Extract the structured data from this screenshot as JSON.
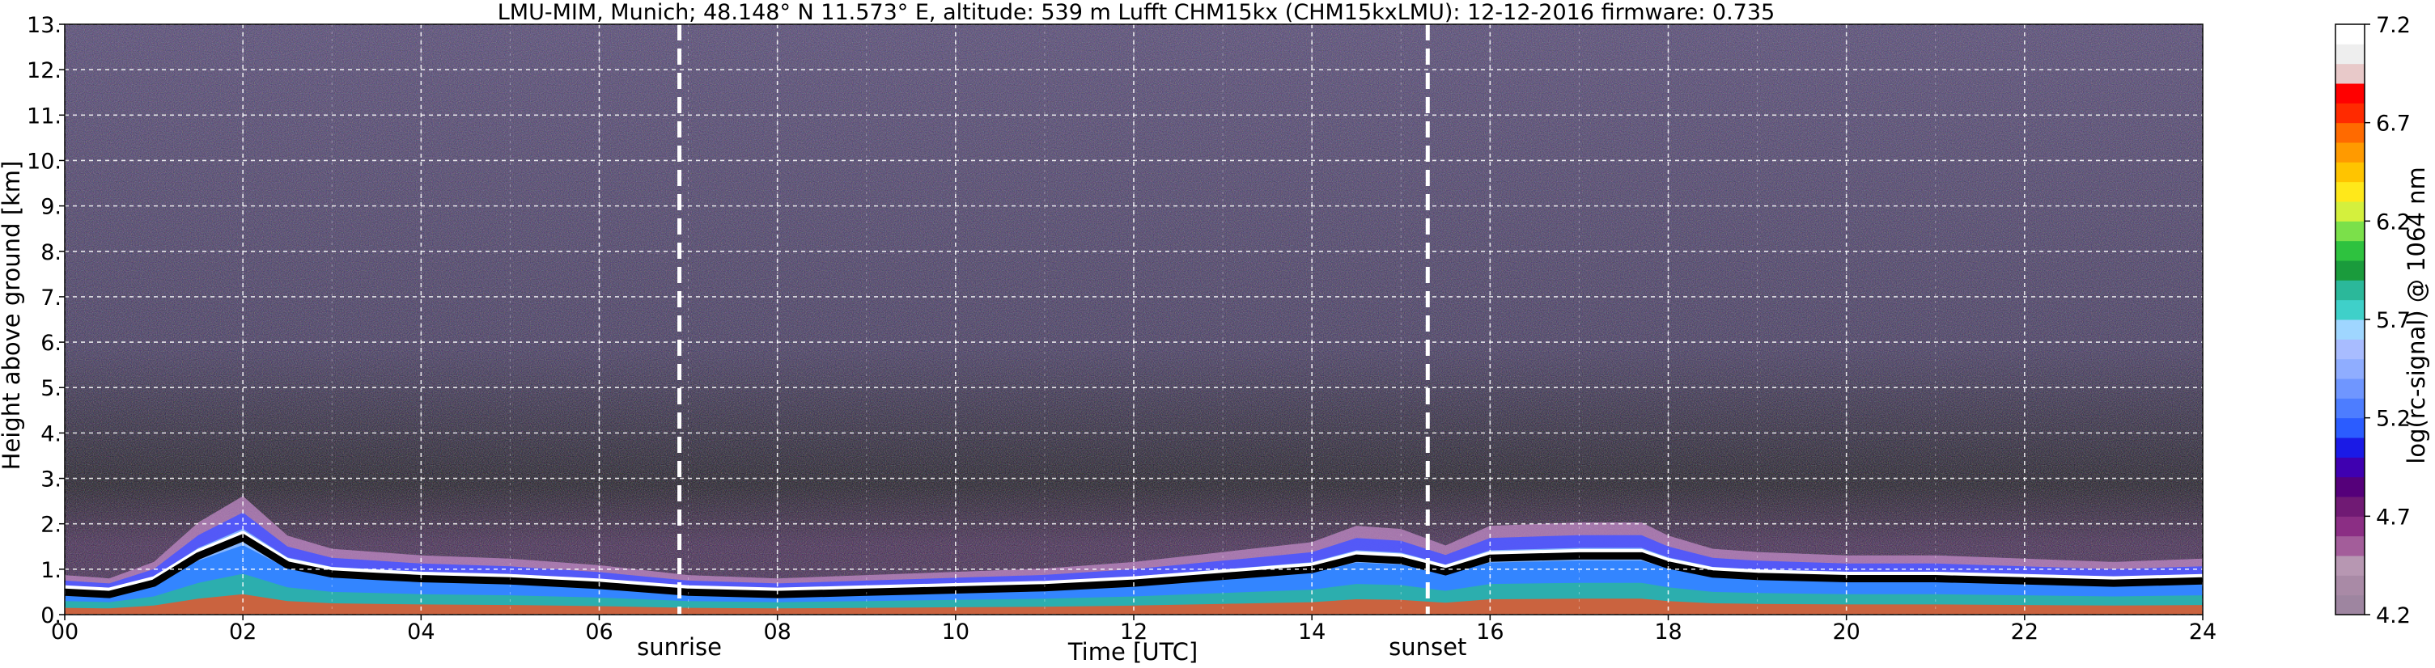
{
  "chart_data": {
    "type": "heatmap",
    "title": "LMU-MIM, Munich; 48.148° N 11.573° E, altitude: 539 m    Lufft CHM15kx (CHM15kxLMU): 12-12-2016    firmware: 0.735",
    "xlabel": "Time [UTC]",
    "ylabel": "Height above ground [km]",
    "xlim": [
      0,
      24
    ],
    "ylim": [
      0,
      13
    ],
    "x_ticks": [
      "00",
      "02",
      "04",
      "06",
      "08",
      "10",
      "12",
      "14",
      "16",
      "18",
      "20",
      "22",
      "24"
    ],
    "y_ticks": [
      "0.",
      "1.",
      "2.",
      "3.",
      "4.",
      "5.",
      "6.",
      "7.",
      "8.",
      "9.",
      "10.",
      "11.",
      "12.",
      "13."
    ],
    "grid": true,
    "colorbar": {
      "label": "log(rc-signal) @ 1064 nm",
      "range": [
        4.2,
        7.2
      ],
      "ticks": [
        "4.2",
        "4.7",
        "5.2",
        "5.7",
        "6.2",
        "6.7",
        "7.2"
      ],
      "colors": [
        "#9e85a0",
        "#a98aa6",
        "#b797b2",
        "#a35d9a",
        "#8b2e84",
        "#701a74",
        "#55007a",
        "#3f00b0",
        "#1a1ae6",
        "#2b5cff",
        "#4d7dff",
        "#6f96ff",
        "#8fadff",
        "#a8bcff",
        "#9fd6ff",
        "#3fd0c9",
        "#2bb89a",
        "#1a9b3c",
        "#2ec23f",
        "#7be04a",
        "#d4f03d",
        "#ffe81a",
        "#ffc400",
        "#ff9a00",
        "#ff6a00",
        "#ff2a00",
        "#ff0000",
        "#e8c9c9",
        "#eeeeee",
        "#ffffff"
      ]
    },
    "events": [
      {
        "name": "sunrise",
        "x": 6.9
      },
      {
        "name": "sunset",
        "x": 15.3
      }
    ],
    "layers": [
      {
        "x": [
          0,
          0.5,
          1,
          1.5,
          2,
          2.5,
          3,
          3.5,
          4,
          5,
          6,
          7,
          8,
          9,
          10,
          11,
          12,
          13,
          14,
          14.5,
          15,
          15.5,
          16,
          17,
          17.7,
          18,
          18.5,
          19,
          20,
          21,
          22,
          23,
          24
        ],
        "top_km": [
          0.6,
          0.55,
          0.8,
          1.4,
          1.8,
          1.2,
          1.0,
          0.95,
          0.9,
          0.85,
          0.75,
          0.6,
          0.55,
          0.6,
          0.65,
          0.7,
          0.8,
          0.95,
          1.1,
          1.35,
          1.3,
          1.05,
          1.35,
          1.4,
          1.4,
          1.2,
          1.0,
          0.95,
          0.9,
          0.9,
          0.85,
          0.8,
          0.85
        ]
      }
    ]
  }
}
